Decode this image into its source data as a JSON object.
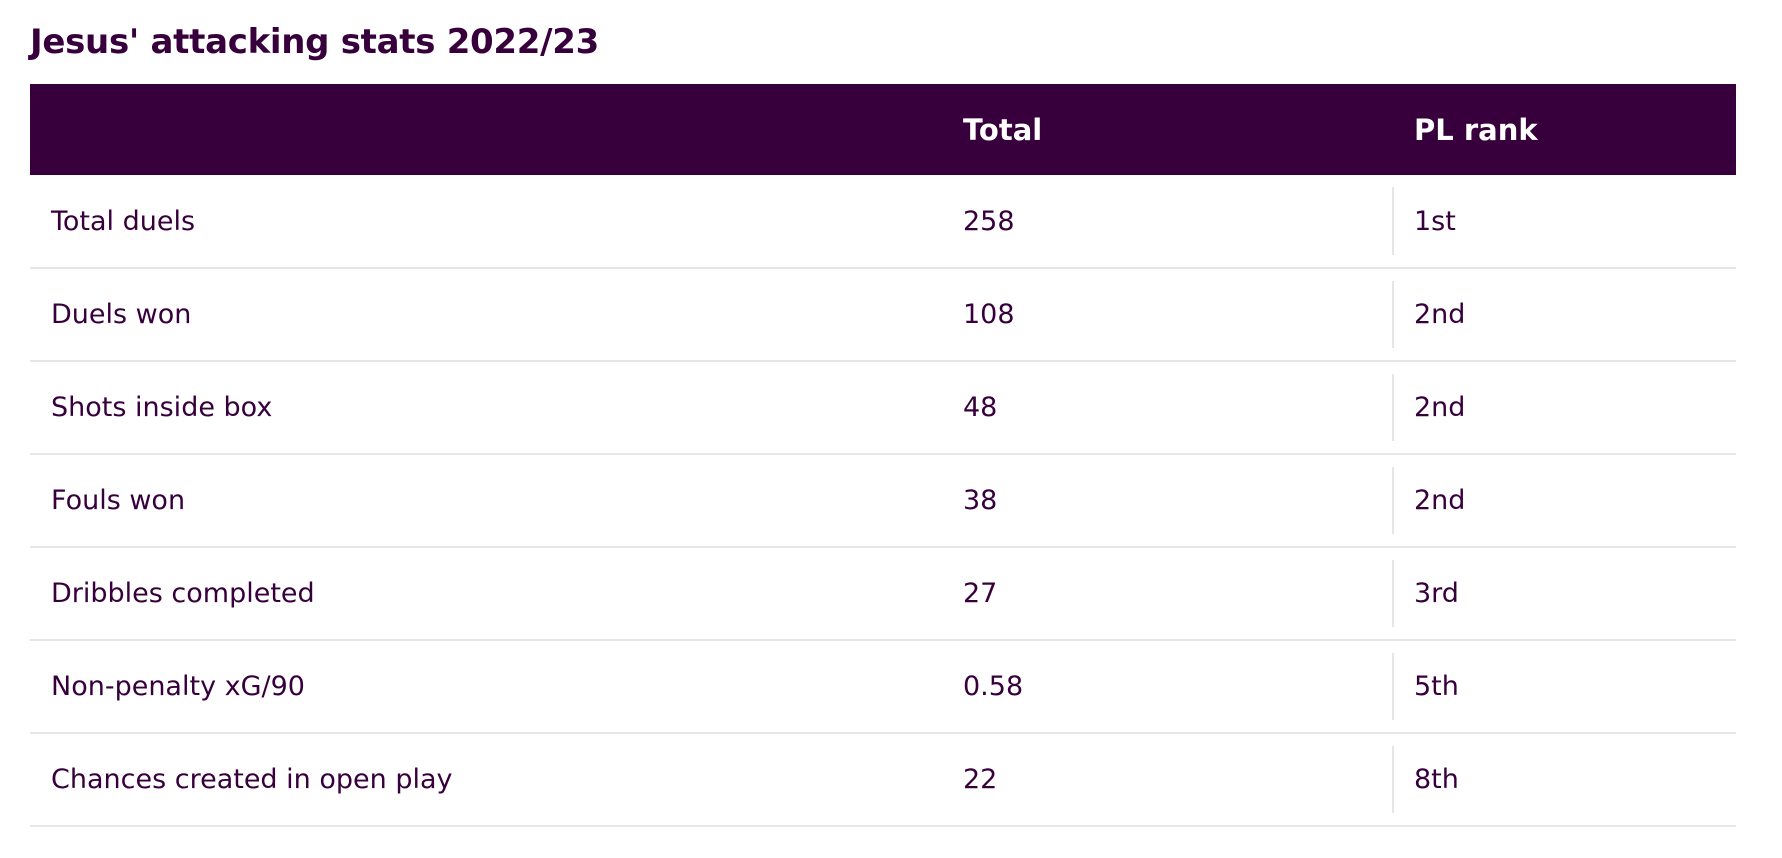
{
  "title": "Jesus' attacking stats 2022/23",
  "table": {
    "headers": {
      "stat": "",
      "total": "Total",
      "rank": "PL rank"
    },
    "rows": [
      {
        "stat": "Total duels",
        "total": "258",
        "rank": "1st"
      },
      {
        "stat": "Duels won",
        "total": "108",
        "rank": "2nd"
      },
      {
        "stat": "Shots inside box",
        "total": "48",
        "rank": "2nd"
      },
      {
        "stat": "Fouls won",
        "total": "38",
        "rank": "2nd"
      },
      {
        "stat": "Dribbles completed",
        "total": "27",
        "rank": "3rd"
      },
      {
        "stat": "Non-penalty xG/90",
        "total": "0.58",
        "rank": "5th"
      },
      {
        "stat": "Chances created in open play",
        "total": "22",
        "rank": "8th"
      }
    ]
  },
  "colors": {
    "header_bg": "#37003c",
    "header_text": "#ffffff",
    "body_text": "#37003c",
    "divider": "#e6e6e6"
  }
}
